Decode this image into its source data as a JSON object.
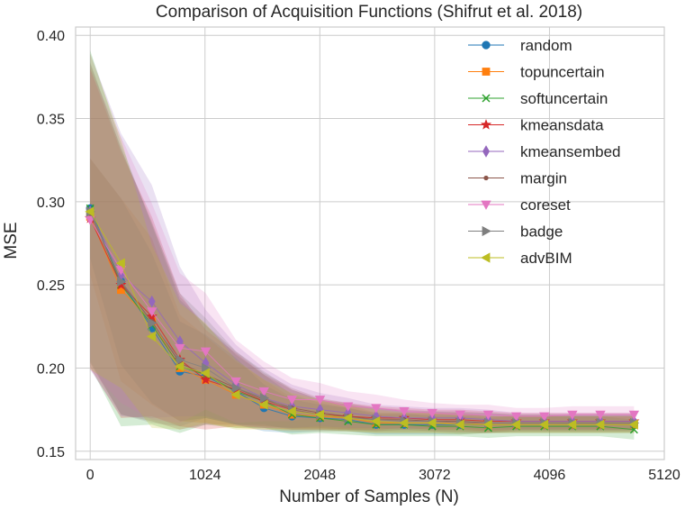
{
  "chart_data": {
    "type": "line",
    "title": "Comparison of Acquisition Functions (Shifrut et al. 2018)",
    "xlabel": "Number of Samples (N)",
    "ylabel": "MSE",
    "xlim": [
      -130,
      5120
    ],
    "ylim": [
      0.145,
      0.405
    ],
    "xticks": [
      0,
      1024,
      2048,
      3072,
      4096,
      5120
    ],
    "yticks": [
      0.15,
      0.2,
      0.25,
      0.3,
      0.35,
      0.4
    ],
    "ytick_labels": [
      "0.15",
      "0.20",
      "0.25",
      "0.30",
      "0.35",
      "0.40"
    ],
    "grid": true,
    "legend_position": "top-right",
    "x": [
      0,
      275,
      550,
      800,
      1030,
      1300,
      1550,
      1800,
      2050,
      2300,
      2550,
      2800,
      3050,
      3300,
      3550,
      3800,
      4050,
      4300,
      4550,
      4850
    ],
    "series": [
      {
        "name": "random",
        "color": "#1f77b4",
        "marker": "circle",
        "values": [
          0.296,
          0.252,
          0.224,
          0.198,
          0.195,
          0.186,
          0.176,
          0.171,
          0.17,
          0.169,
          0.166,
          0.166,
          0.166,
          0.166,
          0.166,
          0.166,
          0.166,
          0.166,
          0.166,
          0.166
        ],
        "band": [
          0.03,
          0.05,
          0.045,
          0.03,
          0.025,
          0.02,
          0.014,
          0.01,
          0.008,
          0.007,
          0.006,
          0.006,
          0.006,
          0.006,
          0.005,
          0.005,
          0.005,
          0.005,
          0.005,
          0.005
        ]
      },
      {
        "name": "topuncertain",
        "color": "#ff7f0e",
        "marker": "square",
        "values": [
          0.291,
          0.247,
          0.228,
          0.2,
          0.193,
          0.184,
          0.178,
          0.172,
          0.171,
          0.17,
          0.167,
          0.167,
          0.167,
          0.167,
          0.166,
          0.166,
          0.166,
          0.166,
          0.166,
          0.166
        ],
        "band": [
          0.035,
          0.055,
          0.05,
          0.032,
          0.026,
          0.02,
          0.015,
          0.01,
          0.009,
          0.008,
          0.006,
          0.006,
          0.006,
          0.006,
          0.005,
          0.005,
          0.005,
          0.005,
          0.005,
          0.005
        ]
      },
      {
        "name": "softuncertain",
        "color": "#2ca02c",
        "marker": "x",
        "values": [
          0.296,
          0.25,
          0.226,
          0.201,
          0.196,
          0.186,
          0.18,
          0.172,
          0.17,
          0.168,
          0.166,
          0.166,
          0.165,
          0.165,
          0.164,
          0.165,
          0.165,
          0.165,
          0.165,
          0.163
        ],
        "band": [
          0.095,
          0.085,
          0.06,
          0.04,
          0.03,
          0.022,
          0.016,
          0.012,
          0.009,
          0.008,
          0.007,
          0.007,
          0.006,
          0.006,
          0.006,
          0.006,
          0.006,
          0.006,
          0.006,
          0.006
        ]
      },
      {
        "name": "kmeansdata",
        "color": "#d62728",
        "marker": "star",
        "values": [
          0.29,
          0.25,
          0.231,
          0.205,
          0.193,
          0.187,
          0.18,
          0.175,
          0.172,
          0.171,
          0.17,
          0.17,
          0.169,
          0.169,
          0.168,
          0.168,
          0.168,
          0.168,
          0.168,
          0.168
        ],
        "band": [
          0.09,
          0.08,
          0.06,
          0.04,
          0.03,
          0.022,
          0.016,
          0.012,
          0.009,
          0.008,
          0.007,
          0.006,
          0.006,
          0.006,
          0.006,
          0.005,
          0.005,
          0.005,
          0.005,
          0.005
        ]
      },
      {
        "name": "kmeansembed",
        "color": "#9467bd",
        "marker": "diamond",
        "values": [
          0.294,
          0.256,
          0.24,
          0.216,
          0.203,
          0.19,
          0.182,
          0.177,
          0.175,
          0.173,
          0.171,
          0.17,
          0.17,
          0.17,
          0.169,
          0.168,
          0.168,
          0.168,
          0.168,
          0.168
        ],
        "band": [
          0.095,
          0.085,
          0.07,
          0.045,
          0.032,
          0.024,
          0.018,
          0.013,
          0.01,
          0.009,
          0.007,
          0.007,
          0.006,
          0.006,
          0.006,
          0.005,
          0.005,
          0.005,
          0.005,
          0.005
        ]
      },
      {
        "name": "margin",
        "color": "#8c564b",
        "marker": "dot",
        "values": [
          0.293,
          0.252,
          0.228,
          0.203,
          0.196,
          0.188,
          0.181,
          0.176,
          0.173,
          0.171,
          0.169,
          0.169,
          0.168,
          0.168,
          0.167,
          0.167,
          0.167,
          0.167,
          0.167,
          0.167
        ],
        "band": [
          0.09,
          0.08,
          0.06,
          0.04,
          0.03,
          0.022,
          0.016,
          0.012,
          0.009,
          0.008,
          0.007,
          0.006,
          0.006,
          0.006,
          0.006,
          0.005,
          0.005,
          0.005,
          0.005,
          0.005
        ]
      },
      {
        "name": "coreset",
        "color": "#e377c2",
        "marker": "triangle-down",
        "values": [
          0.289,
          0.259,
          0.234,
          0.212,
          0.21,
          0.192,
          0.186,
          0.181,
          0.181,
          0.177,
          0.176,
          0.174,
          0.173,
          0.172,
          0.172,
          0.171,
          0.171,
          0.172,
          0.172,
          0.172
        ],
        "band": [
          0.09,
          0.08,
          0.065,
          0.045,
          0.035,
          0.025,
          0.018,
          0.013,
          0.01,
          0.009,
          0.008,
          0.007,
          0.006,
          0.006,
          0.006,
          0.005,
          0.005,
          0.005,
          0.005,
          0.005
        ]
      },
      {
        "name": "badge",
        "color": "#7f7f7f",
        "marker": "triangle-right",
        "values": [
          0.294,
          0.252,
          0.227,
          0.205,
          0.2,
          0.188,
          0.182,
          0.175,
          0.172,
          0.17,
          0.169,
          0.168,
          0.168,
          0.167,
          0.167,
          0.167,
          0.167,
          0.167,
          0.167,
          0.167
        ],
        "band": [
          0.09,
          0.08,
          0.06,
          0.04,
          0.03,
          0.022,
          0.016,
          0.012,
          0.009,
          0.008,
          0.007,
          0.006,
          0.006,
          0.006,
          0.006,
          0.005,
          0.005,
          0.005,
          0.005,
          0.005
        ]
      },
      {
        "name": "advBIM",
        "color": "#bcbd22",
        "marker": "triangle-left",
        "values": [
          0.294,
          0.263,
          0.219,
          0.201,
          0.197,
          0.184,
          0.178,
          0.174,
          0.172,
          0.17,
          0.168,
          0.167,
          0.167,
          0.166,
          0.166,
          0.166,
          0.166,
          0.166,
          0.166,
          0.166
        ],
        "band": [
          0.095,
          0.075,
          0.055,
          0.038,
          0.03,
          0.021,
          0.015,
          0.011,
          0.009,
          0.008,
          0.007,
          0.006,
          0.006,
          0.006,
          0.005,
          0.005,
          0.005,
          0.005,
          0.005,
          0.005
        ]
      }
    ]
  }
}
